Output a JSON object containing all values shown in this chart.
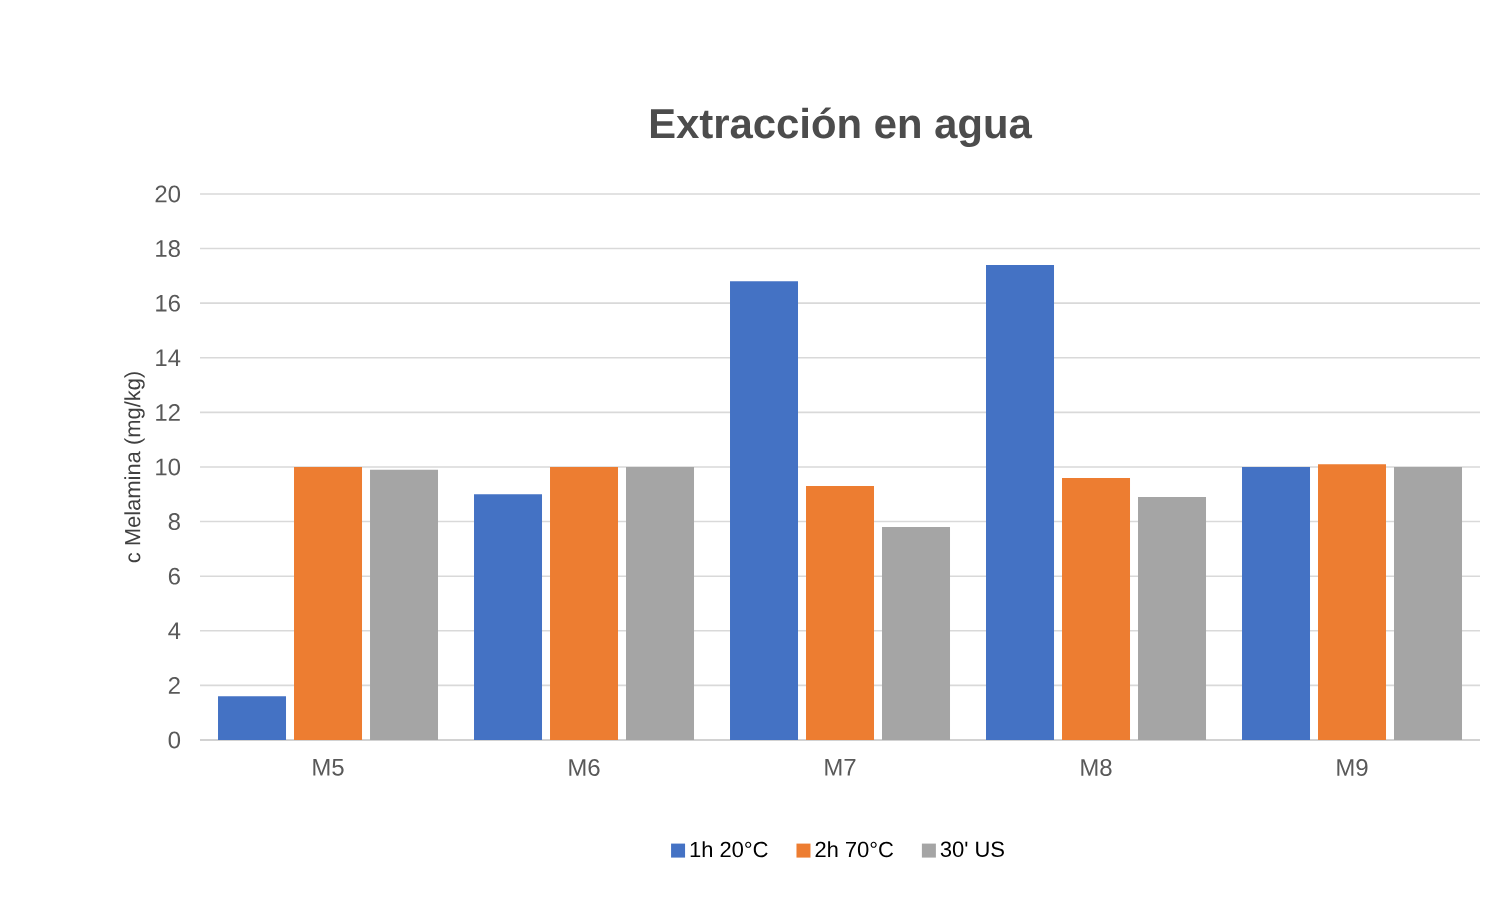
{
  "chart_data": {
    "type": "bar",
    "title": "Extracción en agua",
    "ylabel": "c Melamina (mg/kg)",
    "categories": [
      "M5",
      "M6",
      "M7",
      "M8",
      "M9"
    ],
    "series": [
      {
        "name": "1h 20°C",
        "color": "#4472c4",
        "values": [
          1.6,
          9.0,
          16.8,
          17.4,
          10.0
        ]
      },
      {
        "name": "2h 70°C",
        "color": "#ed7d31",
        "values": [
          10.0,
          10.0,
          9.3,
          9.6,
          10.1
        ]
      },
      {
        "name": "30' US",
        "color": "#a5a5a5",
        "values": [
          9.9,
          10.0,
          7.8,
          8.9,
          10.0
        ]
      }
    ],
    "ylim": [
      0,
      20
    ],
    "yticks": [
      0,
      2,
      4,
      6,
      8,
      10,
      12,
      14,
      16,
      18,
      20
    ],
    "grid": "y",
    "legend": "bottom"
  }
}
